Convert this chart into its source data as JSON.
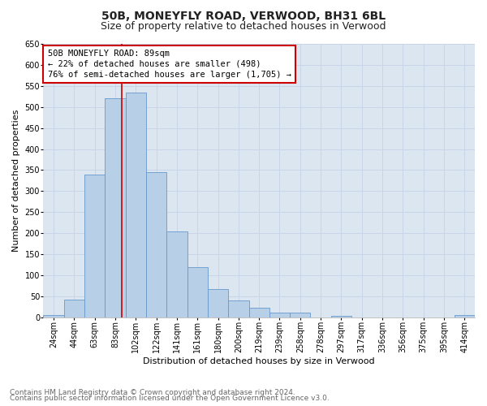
{
  "title": "50B, MONEYFLY ROAD, VERWOOD, BH31 6BL",
  "subtitle": "Size of property relative to detached houses in Verwood",
  "xlabel": "Distribution of detached houses by size in Verwood",
  "ylabel": "Number of detached properties",
  "footnote1": "Contains HM Land Registry data © Crown copyright and database right 2024.",
  "footnote2": "Contains public sector information licensed under the Open Government Licence v3.0.",
  "bar_labels": [
    "24sqm",
    "44sqm",
    "63sqm",
    "83sqm",
    "102sqm",
    "122sqm",
    "141sqm",
    "161sqm",
    "180sqm",
    "200sqm",
    "219sqm",
    "239sqm",
    "258sqm",
    "278sqm",
    "297sqm",
    "317sqm",
    "336sqm",
    "356sqm",
    "375sqm",
    "395sqm",
    "414sqm"
  ],
  "bar_values": [
    5,
    42,
    340,
    520,
    535,
    345,
    205,
    120,
    68,
    40,
    22,
    12,
    12,
    0,
    3,
    0,
    0,
    0,
    0,
    0,
    5
  ],
  "bar_color": "#b8cfe8",
  "bar_edge_color": "#6699cc",
  "annotation_box_text": "50B MONEYFLY ROAD: 89sqm\n← 22% of detached houses are smaller (498)\n76% of semi-detached houses are larger (1,705) →",
  "annotation_box_color": "#ffffff",
  "annotation_box_edge_color": "#cc0000",
  "vline_color": "#cc0000",
  "ylim": [
    0,
    650
  ],
  "yticks": [
    0,
    50,
    100,
    150,
    200,
    250,
    300,
    350,
    400,
    450,
    500,
    550,
    600,
    650
  ],
  "grid_color": "#c8d4e8",
  "plot_bg_color": "#dce6f0",
  "title_fontsize": 10,
  "subtitle_fontsize": 9,
  "axis_label_fontsize": 8,
  "tick_fontsize": 7,
  "annotation_fontsize": 7.5,
  "footnote_fontsize": 6.5
}
